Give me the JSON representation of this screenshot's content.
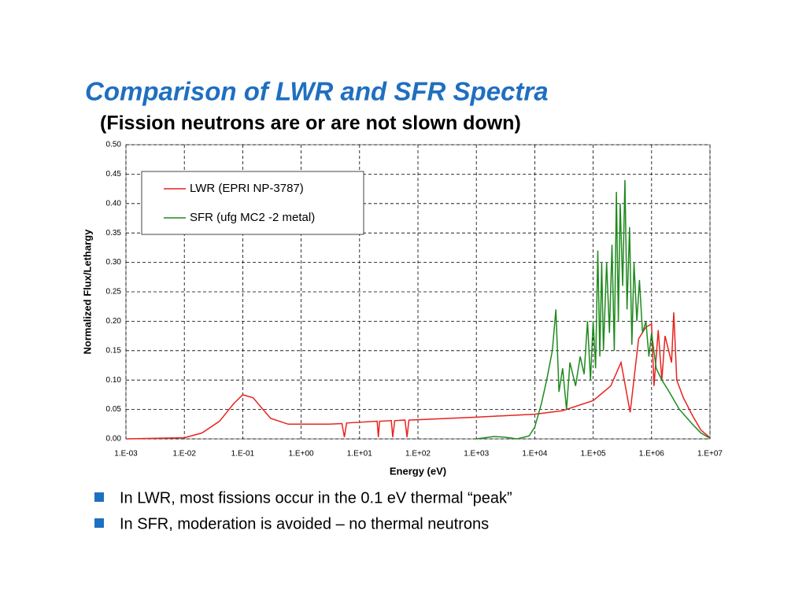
{
  "chart_data": {
    "type": "line",
    "title": "Comparison of LWR and SFR Spectra",
    "subtitle": "(Fission neutrons are or are not slown down)",
    "x_label": "Energy (eV)",
    "y_label": "Normalized Flux/Lethargy",
    "xscale": "log",
    "grid": true,
    "legend": "upper left",
    "xlim": [
      0.001,
      10000000
    ],
    "xticks": [
      {
        "value": 0.001,
        "label": "1.E-03"
      },
      {
        "value": 0.01,
        "label": "1.E-02"
      },
      {
        "value": 0.1,
        "label": "1.E-01"
      },
      {
        "value": 1,
        "label": "1.E+00"
      },
      {
        "value": 10,
        "label": "1.E+01"
      },
      {
        "value": 100,
        "label": "1.E+02"
      },
      {
        "value": 1000,
        "label": "1.E+03"
      },
      {
        "value": 10000,
        "label": "1.E+04"
      },
      {
        "value": 100000,
        "label": "1.E+05"
      },
      {
        "value": 1000000,
        "label": "1.E+06"
      },
      {
        "value": 10000000,
        "label": "1.E+07"
      }
    ],
    "ylim": [
      0,
      0.5
    ],
    "yticks": [
      {
        "value": 0,
        "label": "0.00"
      },
      {
        "value": 0.05,
        "label": "0.05"
      },
      {
        "value": 0.1,
        "label": "0.10"
      },
      {
        "value": 0.15,
        "label": "0.15"
      },
      {
        "value": 0.2,
        "label": "0.20"
      },
      {
        "value": 0.25,
        "label": "0.25"
      },
      {
        "value": 0.3,
        "label": "0.30"
      },
      {
        "value": 0.35,
        "label": "0.35"
      },
      {
        "value": 0.4,
        "label": "0.40"
      },
      {
        "value": 0.45,
        "label": "0.45"
      },
      {
        "value": 0.5,
        "label": "0.50"
      }
    ],
    "series": [
      {
        "name": "LWR (EPRI NP-3787)",
        "color": "#e8231f",
        "x": [
          0.001,
          0.01,
          0.02,
          0.04,
          0.07,
          0.1,
          0.15,
          0.3,
          0.6,
          3,
          5,
          5.5,
          6,
          20,
          21,
          22,
          35,
          37,
          40,
          60,
          65,
          70,
          1000,
          10000,
          30000,
          100000,
          200000,
          300000,
          430000,
          600000,
          800000,
          1000000,
          1100000,
          1300000,
          1500000,
          1700000,
          2200000,
          2400000,
          2700000,
          3500000,
          5000000,
          7000000,
          10000000
        ],
        "values": [
          0,
          0.002,
          0.01,
          0.03,
          0.06,
          0.075,
          0.07,
          0.035,
          0.025,
          0.025,
          0.026,
          0.003,
          0.027,
          0.03,
          0.003,
          0.03,
          0.031,
          0.003,
          0.031,
          0.032,
          0.003,
          0.032,
          0.037,
          0.042,
          0.048,
          0.065,
          0.09,
          0.13,
          0.045,
          0.17,
          0.19,
          0.195,
          0.09,
          0.185,
          0.1,
          0.175,
          0.13,
          0.215,
          0.1,
          0.07,
          0.04,
          0.015,
          0.002
        ]
      },
      {
        "name": "SFR (ufg MC2 -2 metal)",
        "color": "#1f8a1f",
        "x": [
          1000,
          2000,
          3000,
          5000,
          8000,
          10000,
          13000,
          16000,
          20000,
          23000,
          26000,
          30000,
          35000,
          40000,
          50000,
          60000,
          70000,
          80000,
          90000,
          100000,
          110000,
          120000,
          130000,
          140000,
          150000,
          170000,
          190000,
          210000,
          230000,
          250000,
          270000,
          290000,
          320000,
          350000,
          380000,
          420000,
          460000,
          500000,
          560000,
          620000,
          700000,
          800000,
          900000,
          1000000,
          1200000,
          1500000,
          2000000,
          3000000,
          5000000,
          7000000,
          10000000
        ],
        "values": [
          0,
          0.004,
          0.003,
          0,
          0.005,
          0.02,
          0.06,
          0.1,
          0.15,
          0.22,
          0.08,
          0.12,
          0.05,
          0.13,
          0.09,
          0.14,
          0.11,
          0.2,
          0.1,
          0.2,
          0.12,
          0.32,
          0.14,
          0.3,
          0.15,
          0.3,
          0.18,
          0.33,
          0.15,
          0.42,
          0.2,
          0.4,
          0.26,
          0.44,
          0.22,
          0.36,
          0.16,
          0.3,
          0.2,
          0.27,
          0.18,
          0.2,
          0.14,
          0.18,
          0.12,
          0.1,
          0.08,
          0.05,
          0.025,
          0.01,
          0.001
        ]
      }
    ]
  },
  "bullets": [
    "In LWR, most fissions occur in the 0.1 eV thermal “peak”",
    "In SFR, moderation is avoided – no thermal neutrons"
  ]
}
